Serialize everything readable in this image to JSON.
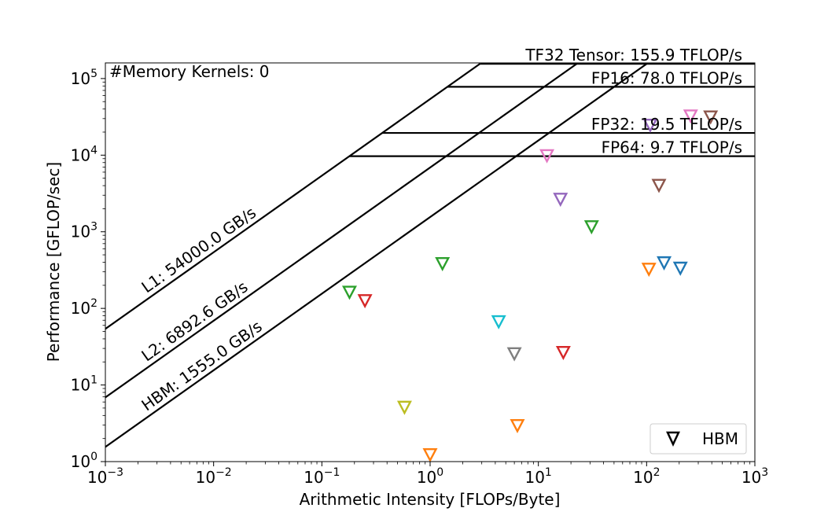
{
  "chart_data": {
    "type": "scatter",
    "title": "",
    "xlabel": "Arithmetic Intensity [FLOPs/Byte]",
    "ylabel": "Performance [GFLOP/sec]",
    "xscale": "log",
    "yscale": "log",
    "xlim": [
      0.001,
      1000
    ],
    "ylim": [
      1,
      160000
    ],
    "x_ticks": [
      {
        "value": 0.001,
        "base": "10",
        "exp": "−3"
      },
      {
        "value": 0.01,
        "base": "10",
        "exp": "−2"
      },
      {
        "value": 0.1,
        "base": "10",
        "exp": "−1"
      },
      {
        "value": 1,
        "base": "10",
        "exp": "0"
      },
      {
        "value": 10,
        "base": "10",
        "exp": "1"
      },
      {
        "value": 100,
        "base": "10",
        "exp": "2"
      },
      {
        "value": 1000,
        "base": "10",
        "exp": "3"
      }
    ],
    "y_ticks": [
      {
        "value": 1,
        "base": "10",
        "exp": "0"
      },
      {
        "value": 10,
        "base": "10",
        "exp": "1"
      },
      {
        "value": 100,
        "base": "10",
        "exp": "2"
      },
      {
        "value": 1000,
        "base": "10",
        "exp": "3"
      },
      {
        "value": 10000,
        "base": "10",
        "exp": "4"
      },
      {
        "value": 100000,
        "base": "10",
        "exp": "5"
      }
    ],
    "annotation": "#Memory Kernels: 0",
    "compute_ceilings": [
      {
        "label": "TF32 Tensor: 155.9 TFLOP/s",
        "gflops": 155900
      },
      {
        "label": "FP16: 78.0 TFLOP/s",
        "gflops": 78000
      },
      {
        "label": "FP32: 19.5 TFLOP/s",
        "gflops": 19500
      },
      {
        "label": "FP64: 9.7 TFLOP/s",
        "gflops": 9700
      }
    ],
    "bandwidth_ceilings": [
      {
        "label": "L1: 54000.0 GB/s",
        "gbps": 54000
      },
      {
        "label": "L2: 6892.6 GB/s",
        "gbps": 6892.6
      },
      {
        "label": "HBM: 1555.0 GB/s",
        "gbps": 1555
      }
    ],
    "legend": {
      "label": "HBM",
      "position": "lower-right"
    },
    "points": [
      {
        "x": 0.18,
        "y": 165,
        "color": "#2ca02c"
      },
      {
        "x": 0.25,
        "y": 128,
        "color": "#d62728"
      },
      {
        "x": 1.3,
        "y": 390,
        "color": "#2ca02c"
      },
      {
        "x": 0.58,
        "y": 5.2,
        "color": "#bcbd22"
      },
      {
        "x": 1.0,
        "y": 1.25,
        "color": "#ff7f0e"
      },
      {
        "x": 4.3,
        "y": 68,
        "color": "#17becf"
      },
      {
        "x": 6.0,
        "y": 26,
        "color": "#7f7f7f"
      },
      {
        "x": 6.4,
        "y": 3.0,
        "color": "#ff7f0e"
      },
      {
        "x": 12,
        "y": 10000,
        "color": "#e377c2"
      },
      {
        "x": 16,
        "y": 2700,
        "color": "#9467bd"
      },
      {
        "x": 17,
        "y": 27,
        "color": "#d62728"
      },
      {
        "x": 31,
        "y": 1180,
        "color": "#2ca02c"
      },
      {
        "x": 105,
        "y": 330,
        "color": "#ff7f0e"
      },
      {
        "x": 108,
        "y": 25000,
        "color": "#9467bd"
      },
      {
        "x": 130,
        "y": 4100,
        "color": "#8c564b"
      },
      {
        "x": 145,
        "y": 400,
        "color": "#1f77b4"
      },
      {
        "x": 205,
        "y": 340,
        "color": "#1f77b4"
      },
      {
        "x": 255,
        "y": 33000,
        "color": "#e377c2"
      },
      {
        "x": 390,
        "y": 32000,
        "color": "#8c564b"
      }
    ]
  }
}
